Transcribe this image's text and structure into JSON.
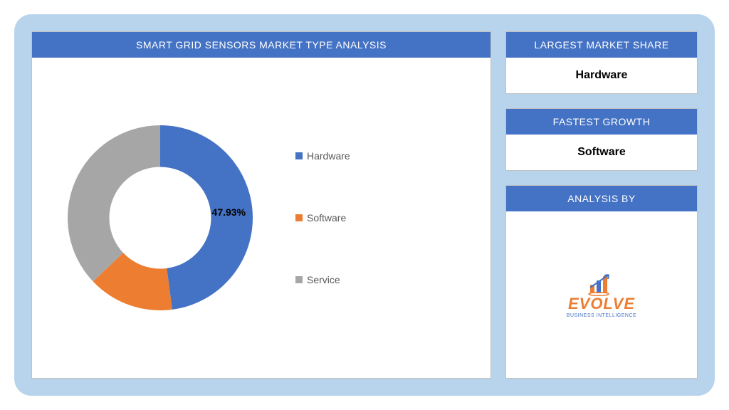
{
  "background_color": "#b8d4ed",
  "card_border_color": "#c0c0c0",
  "header_bg": "#4472c4",
  "header_text_color": "#ffffff",
  "chart": {
    "title": "SMART GRID SENSORS MARKET TYPE ANALYSIS",
    "type": "donut",
    "inner_radius_pct": 55,
    "series": [
      {
        "name": "Hardware",
        "value": 47.93,
        "color": "#4472c4",
        "label": "47.93%"
      },
      {
        "name": "Software",
        "value": 15.0,
        "color": "#ed7d31",
        "label": ""
      },
      {
        "name": "Service",
        "value": 37.07,
        "color": "#a6a6a6",
        "label": ""
      }
    ],
    "label_fontsize": 14,
    "label_fontweight": "bold",
    "legend_fontsize": 14,
    "legend_color": "#595959",
    "start_angle_deg": 0
  },
  "side_cards": {
    "largest_share": {
      "title": "LARGEST MARKET SHARE",
      "value": "Hardware"
    },
    "fastest_growth": {
      "title": "FASTEST GROWTH",
      "value": "Software"
    },
    "analysis_by": {
      "title": "ANALYSIS BY"
    }
  },
  "logo": {
    "word": "EVOLVE",
    "sub": "BUSINESS INTELLIGENCE",
    "word_color": "#ed7d31",
    "sub_color": "#4472c4",
    "arrow_color": "#4472c4",
    "bars": [
      "#ed7d31",
      "#4472c4",
      "#ed7d31"
    ]
  }
}
